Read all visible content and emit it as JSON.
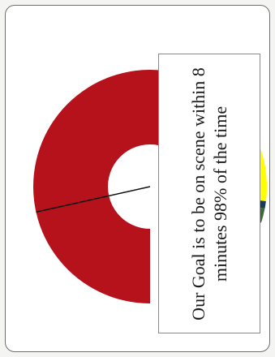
{
  "chart_data": {
    "type": "pie",
    "style": "half-donut",
    "title": "",
    "slices": [
      {
        "label": "",
        "value": 57,
        "color": "#b5121b"
      },
      {
        "label": "",
        "value": 20,
        "color": "#ffff00"
      },
      {
        "label": "",
        "value": 1,
        "color": "#1a3a5c"
      },
      {
        "label": "",
        "value": 2,
        "color": "#3d6b35"
      },
      {
        "label": "",
        "value": 20,
        "color": "#ffffff"
      }
    ],
    "pointer_value_percent": 21.5,
    "callout_text": "Our Goal is to be on scene within 8 minutes 98% of the time"
  }
}
